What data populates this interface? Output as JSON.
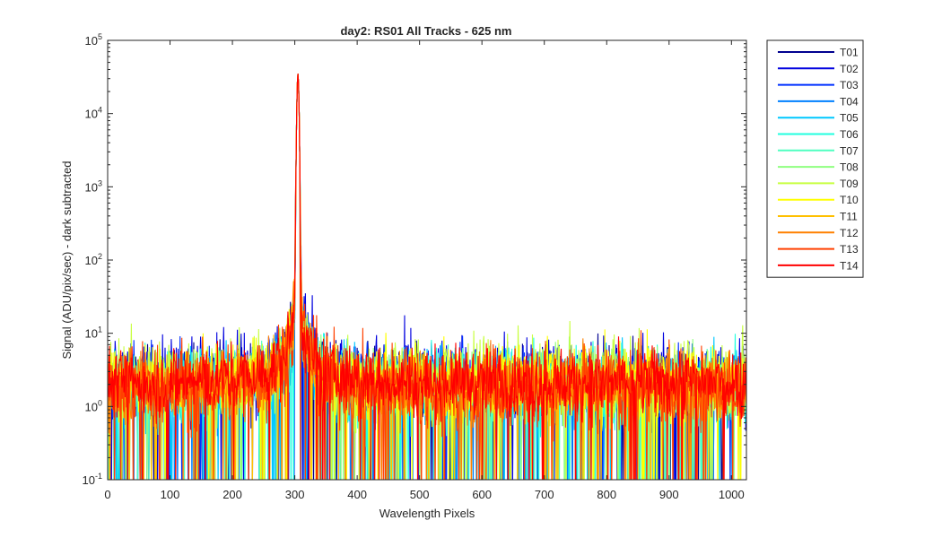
{
  "chart_data": {
    "type": "line",
    "title": "day2: RS01  All Tracks - 625 nm",
    "xlabel": "Wavelength Pixels",
    "ylabel": "Signal (ADU/pix/sec) - dark subtracted",
    "xlim": [
      0,
      1024
    ],
    "ylim": [
      0.1,
      100000
    ],
    "yscale": "log",
    "xticks": [
      "0",
      "100",
      "200",
      "300",
      "400",
      "500",
      "600",
      "700",
      "800",
      "900",
      "1000"
    ],
    "yticks": [
      {
        "base": "10",
        "exp": "-1"
      },
      {
        "base": "10",
        "exp": "0"
      },
      {
        "base": "10",
        "exp": "1"
      },
      {
        "base": "10",
        "exp": "2"
      },
      {
        "base": "10",
        "exp": "3"
      },
      {
        "base": "10",
        "exp": "4"
      },
      {
        "base": "10",
        "exp": "5"
      }
    ],
    "grid": false,
    "legend_position": "outside-top-right",
    "peak": {
      "x": 305,
      "y": 35000
    },
    "baseline_level": 2,
    "series": [
      {
        "name": "T01",
        "color": "#00008f"
      },
      {
        "name": "T02",
        "color": "#0000df"
      },
      {
        "name": "T03",
        "color": "#0030ff"
      },
      {
        "name": "T04",
        "color": "#0080ff"
      },
      {
        "name": "T05",
        "color": "#00c8ff"
      },
      {
        "name": "T06",
        "color": "#20ffdf"
      },
      {
        "name": "T07",
        "color": "#50ffc0"
      },
      {
        "name": "T08",
        "color": "#90ff80"
      },
      {
        "name": "T09",
        "color": "#c8ff40"
      },
      {
        "name": "T10",
        "color": "#ffff00"
      },
      {
        "name": "T11",
        "color": "#ffc000"
      },
      {
        "name": "T12",
        "color": "#ff8000"
      },
      {
        "name": "T13",
        "color": "#ff4000"
      },
      {
        "name": "T14",
        "color": "#ff0000"
      }
    ]
  }
}
